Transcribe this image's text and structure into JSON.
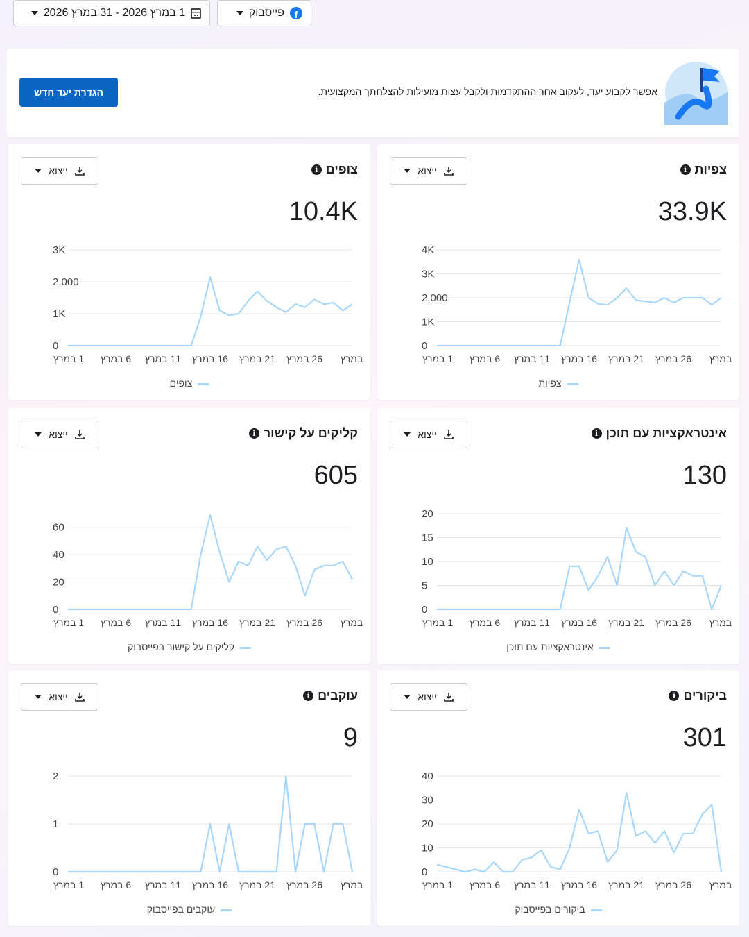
{
  "filters": {
    "date_range": "1 במרץ 2026 - 31 במרץ 2026",
    "platform": "פייסבוק",
    "platform_icon": "facebook-icon",
    "date_icon": "calendar-icon"
  },
  "banner": {
    "text": "אפשר לקבוע יעד, לעקוב אחר ההתקדמות ולקבל עצות מועילות להצלחתך המקצועית.",
    "button": "הגדרת יעד חדש",
    "button_color": "#0a66c2"
  },
  "export_label": "ייצוא",
  "colors": {
    "line": "#a9d7fb",
    "grid": "#e4e6eb",
    "axis_text": "#444444"
  },
  "cards": [
    {
      "title": "צפיות",
      "value": "33.9K",
      "legend": "צפיות",
      "chart_data": {
        "type": "line",
        "x_tick_labels": [
          "1 במרץ",
          "6 במרץ",
          "11 במרץ",
          "16 במרץ",
          "21 במרץ",
          "26 במרץ",
          "במרץ"
        ],
        "y_tick_labels": [
          "0",
          "1K",
          "2,000",
          "3K",
          "4K"
        ],
        "y_ticks": [
          0,
          1000,
          2000,
          3000,
          4000
        ],
        "ylim": [
          0,
          4000
        ],
        "series": [
          {
            "name": "צפיות",
            "values": [
              0,
              0,
              0,
              0,
              0,
              0,
              0,
              0,
              0,
              0,
              0,
              0,
              0,
              0,
              1800,
              3600,
              2000,
              1750,
              1700,
              2000,
              2400,
              1900,
              1850,
              1800,
              2000,
              1800,
              2000,
              2000,
              2000,
              1700,
              2000
            ]
          }
        ]
      }
    },
    {
      "title": "צופים",
      "value": "10.4K",
      "legend": "צופים",
      "chart_data": {
        "type": "line",
        "x_tick_labels": [
          "1 במרץ",
          "6 במרץ",
          "11 במרץ",
          "16 במרץ",
          "21 במרץ",
          "26 במרץ",
          "במרץ"
        ],
        "y_tick_labels": [
          "0",
          "1K",
          "2,000",
          "3K"
        ],
        "y_ticks": [
          0,
          1000,
          2000,
          3000
        ],
        "ylim": [
          0,
          3000
        ],
        "series": [
          {
            "name": "צופים",
            "values": [
              0,
              0,
              0,
              0,
              0,
              0,
              0,
              0,
              0,
              0,
              0,
              0,
              0,
              0,
              900,
              2150,
              1100,
              950,
              1000,
              1400,
              1700,
              1400,
              1200,
              1050,
              1300,
              1200,
              1450,
              1300,
              1350,
              1100,
              1300
            ]
          }
        ]
      }
    },
    {
      "title": "אינטראקציות עם תוכן",
      "value": "130",
      "legend": "אינטראקציות עם תוכן",
      "chart_data": {
        "type": "line",
        "x_tick_labels": [
          "1 במרץ",
          "6 במרץ",
          "11 במרץ",
          "16 במרץ",
          "21 במרץ",
          "26 במרץ",
          "במרץ"
        ],
        "y_tick_labels": [
          "0",
          "5",
          "10",
          "15",
          "20"
        ],
        "y_ticks": [
          0,
          5,
          10,
          15,
          20
        ],
        "ylim": [
          0,
          20
        ],
        "series": [
          {
            "name": "אינטראקציות עם תוכן",
            "values": [
              0,
              0,
              0,
              0,
              0,
              0,
              0,
              0,
              0,
              0,
              0,
              0,
              0,
              0,
              9,
              9,
              4,
              7,
              11,
              5,
              17,
              12,
              11,
              5,
              8,
              5,
              8,
              7,
              7,
              0,
              5
            ]
          }
        ]
      }
    },
    {
      "title": "קליקים על קישור",
      "value": "605",
      "legend": "קליקים על קישור בפייסבוק",
      "chart_data": {
        "type": "line",
        "x_tick_labels": [
          "1 במרץ",
          "6 במרץ",
          "11 במרץ",
          "16 במרץ",
          "21 במרץ",
          "26 במרץ",
          "במרץ"
        ],
        "y_tick_labels": [
          "0",
          "20",
          "40",
          "60"
        ],
        "y_ticks": [
          0,
          20,
          40,
          60
        ],
        "ylim": [
          0,
          70
        ],
        "series": [
          {
            "name": "קליקים על קישור בפייסבוק",
            "values": [
              0,
              0,
              0,
              0,
              0,
              0,
              0,
              0,
              0,
              0,
              0,
              0,
              0,
              0,
              40,
              69,
              42,
              20,
              35,
              32,
              46,
              36,
              44,
              46,
              32,
              10,
              29,
              32,
              32,
              35,
              22
            ]
          }
        ]
      }
    },
    {
      "title": "ביקורים",
      "value": "301",
      "legend": "ביקורים בפייסבוק",
      "chart_data": {
        "type": "line",
        "x_tick_labels": [
          "1 במרץ",
          "6 במרץ",
          "11 במרץ",
          "16 במרץ",
          "21 במרץ",
          "26 במרץ",
          "במרץ"
        ],
        "y_tick_labels": [
          "0",
          "10",
          "20",
          "30",
          "40"
        ],
        "y_ticks": [
          0,
          10,
          20,
          30,
          40
        ],
        "ylim": [
          0,
          40
        ],
        "series": [
          {
            "name": "ביקורים בפייסבוק",
            "values": [
              3,
              2,
              1,
              0,
              1,
              0,
              4,
              0,
              0,
              5,
              6,
              9,
              2,
              1,
              10,
              26,
              16,
              17,
              4,
              9,
              33,
              15,
              17,
              12,
              17,
              8,
              16,
              16,
              24,
              28,
              0
            ]
          }
        ]
      }
    },
    {
      "title": "עוקבים",
      "value": "9",
      "legend": "עוקבים בפייסבוק",
      "chart_data": {
        "type": "line",
        "x_tick_labels": [
          "1 במרץ",
          "6 במרץ",
          "11 במרץ",
          "16 במרץ",
          "21 במרץ",
          "26 במרץ",
          "במרץ"
        ],
        "y_tick_labels": [
          "0",
          "1",
          "2"
        ],
        "y_ticks": [
          0,
          1,
          2
        ],
        "ylim": [
          0,
          2
        ],
        "series": [
          {
            "name": "עוקבים בפייסבוק",
            "values": [
              0,
              0,
              0,
              0,
              0,
              0,
              0,
              0,
              0,
              0,
              0,
              0,
              0,
              0,
              0,
              1,
              0,
              1,
              0,
              0,
              0,
              0,
              0,
              2,
              0,
              1,
              1,
              0,
              1,
              1,
              0
            ]
          }
        ]
      }
    }
  ]
}
